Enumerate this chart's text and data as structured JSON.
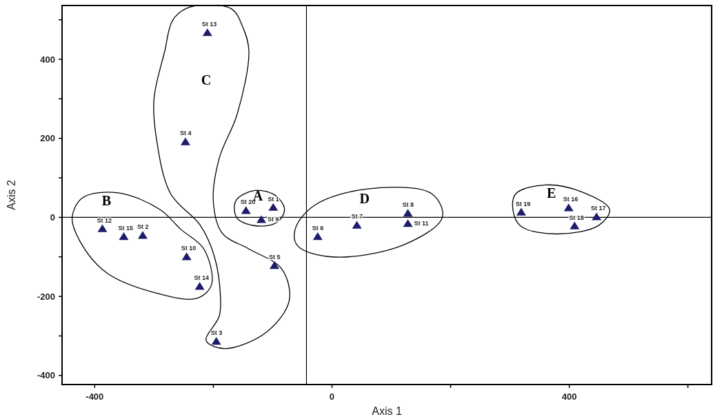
{
  "chart_data": {
    "type": "scatter",
    "xlabel": "Axis 1",
    "ylabel": "Axis 2",
    "xlim": [
      -455,
      640
    ],
    "ylim": [
      -423,
      536
    ],
    "xticks": [
      {
        "value": -400,
        "label": "-400"
      },
      {
        "value": -200,
        "label": null
      },
      0,
      {
        "value": 200,
        "label": null
      },
      400,
      {
        "value": 600,
        "label": null
      }
    ],
    "yticks": [
      {
        "value": -400,
        "label": "-400"
      },
      {
        "value": -300,
        "label": null
      },
      {
        "value": -200,
        "label": "-200"
      },
      {
        "value": -100,
        "label": null
      },
      0,
      {
        "value": 100,
        "label": null
      },
      200,
      {
        "value": 300,
        "label": null
      },
      400,
      {
        "value": 500,
        "label": null
      }
    ],
    "x": [
      -210,
      -247,
      -145,
      -99,
      -119,
      -387,
      -351,
      -319,
      -245,
      -223,
      -97,
      -195,
      -24,
      42,
      128,
      128,
      319,
      399,
      446,
      409
    ],
    "series": [
      {
        "color": "#1c1c6b",
        "values": [
          466,
          190,
          16,
          24,
          -7,
          -30,
          -50,
          -47,
          -101,
          -176,
          -123,
          -315,
          -50,
          -21,
          9,
          -17,
          12,
          23,
          0,
          -23
        ]
      }
    ],
    "marker": "triangle",
    "grid": false,
    "ref_lines": [
      {
        "axis": "x",
        "value": -43
      },
      {
        "axis": "y",
        "value": 0
      }
    ],
    "annotations": [
      {
        "text": "St 13",
        "x": -210,
        "y": 466
      },
      {
        "text": "St 4",
        "x": -247,
        "y": 190
      },
      {
        "text": "St 20",
        "x": -145,
        "y": 16
      },
      {
        "text": "St 1",
        "x": -99,
        "y": 24
      },
      {
        "text": "St 9",
        "x": -119,
        "y": -7
      },
      {
        "text": "St 12",
        "x": -387,
        "y": -30
      },
      {
        "text": "St 15",
        "x": -351,
        "y": -50
      },
      {
        "text": "St 2",
        "x": -319,
        "y": -47
      },
      {
        "text": "St 10",
        "x": -245,
        "y": -101
      },
      {
        "text": "St 14",
        "x": -223,
        "y": -176
      },
      {
        "text": "St 5",
        "x": -97,
        "y": -123
      },
      {
        "text": "St 3",
        "x": -195,
        "y": -315
      },
      {
        "text": "St 6",
        "x": -24,
        "y": -50
      },
      {
        "text": "St 7",
        "x": 42,
        "y": -21
      },
      {
        "text": "St 8",
        "x": 128,
        "y": 9
      },
      {
        "text": "St 11",
        "x": 128,
        "y": -17
      },
      {
        "text": "St 19",
        "x": 319,
        "y": 12
      },
      {
        "text": "St 16",
        "x": 399,
        "y": 23
      },
      {
        "text": "St 17",
        "x": 446,
        "y": 0
      },
      {
        "text": "St 18",
        "x": 409,
        "y": -23
      },
      "A",
      "B",
      "C",
      "D",
      "E"
    ]
  }
}
